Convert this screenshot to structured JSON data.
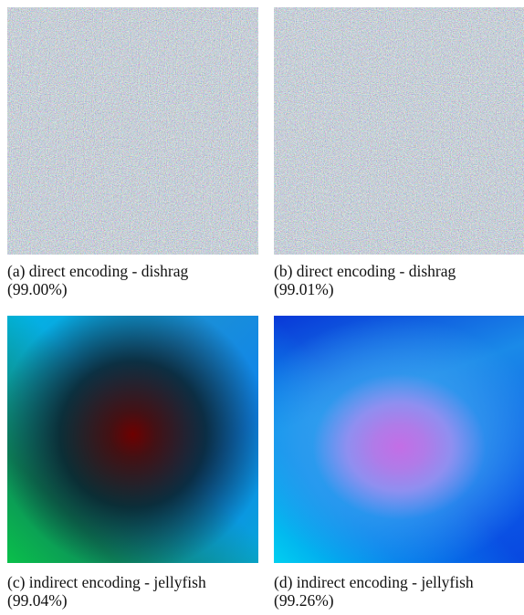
{
  "figures": [
    {
      "caption": "(a) direct encoding - dishrag",
      "score": "(99.00%)"
    },
    {
      "caption": "(b) direct encoding - dishrag",
      "score": "(99.01%)"
    },
    {
      "caption": "(c) indirect encoding - jellyfish",
      "score": "(99.04%)"
    },
    {
      "caption": "(d) indirect encoding - jellyfish",
      "score": "(99.26%)"
    }
  ]
}
